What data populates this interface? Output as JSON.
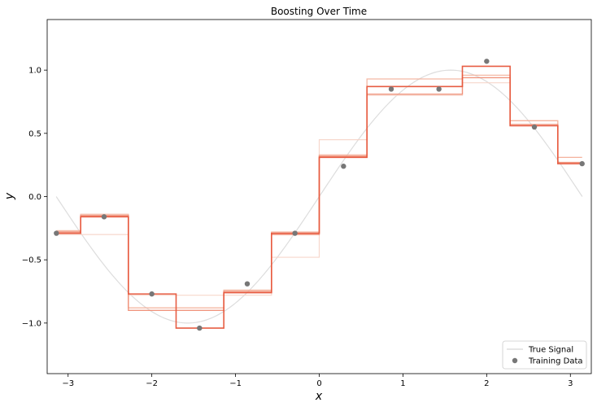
{
  "chart_data": {
    "type": "line",
    "title": "Boosting Over Time",
    "xlabel": "x",
    "ylabel": "y",
    "xlim": [
      -3.25,
      3.25
    ],
    "ylim": [
      -1.4,
      1.4
    ],
    "xticks": [
      -3,
      -2,
      -1,
      0,
      1,
      2,
      3
    ],
    "yticks": [
      -1.0,
      -0.5,
      0.0,
      0.5,
      1.0
    ],
    "grid": false,
    "legend_position": "lower-right",
    "legend": [
      {
        "label": "True Signal",
        "kind": "line",
        "color": "#dddddd"
      },
      {
        "label": "Training Data",
        "kind": "marker",
        "color": "#777777"
      }
    ],
    "true_signal": {
      "function": "sin",
      "x_range": [
        -3.1416,
        3.1416
      ],
      "color": "#dddddd"
    },
    "training_data": {
      "color": "#777777",
      "x": [
        -3.14,
        -2.57,
        -2.0,
        -1.43,
        -0.86,
        -0.29,
        0.29,
        0.86,
        1.43,
        2.0,
        2.57,
        3.14
      ],
      "y": [
        -0.29,
        -0.16,
        -0.77,
        -1.04,
        -0.69,
        -0.29,
        0.24,
        0.85,
        0.85,
        1.07,
        0.55,
        0.26
      ]
    },
    "step_boundaries": [
      -2.85,
      -2.28,
      -1.71,
      -1.14,
      -0.57,
      0.0,
      0.57,
      1.14,
      1.71,
      2.28,
      2.85
    ],
    "series": [
      {
        "color": "#f6d3c6",
        "opacity": 0.9,
        "width": 1.2,
        "values": [
          -0.3,
          -0.3,
          -0.78,
          -0.78,
          -0.78,
          -0.48,
          0.45,
          0.8,
          0.8,
          0.9,
          0.6,
          0.31
        ]
      },
      {
        "color": "#f3b09a",
        "opacity": 0.9,
        "width": 1.3,
        "values": [
          -0.27,
          -0.14,
          -0.88,
          -0.88,
          -0.74,
          -0.28,
          0.33,
          0.93,
          0.93,
          0.96,
          0.6,
          0.31
        ]
      },
      {
        "color": "#ee8a70",
        "opacity": 0.9,
        "width": 1.4,
        "values": [
          -0.28,
          -0.15,
          -0.9,
          -0.9,
          -0.75,
          -0.3,
          0.32,
          0.81,
          0.81,
          0.94,
          0.57,
          0.27
        ]
      },
      {
        "color": "#e6553a",
        "opacity": 0.95,
        "width": 1.6,
        "values": [
          -0.29,
          -0.16,
          -0.77,
          -1.04,
          -0.76,
          -0.29,
          0.31,
          0.87,
          0.87,
          1.03,
          0.56,
          0.26
        ]
      }
    ]
  }
}
